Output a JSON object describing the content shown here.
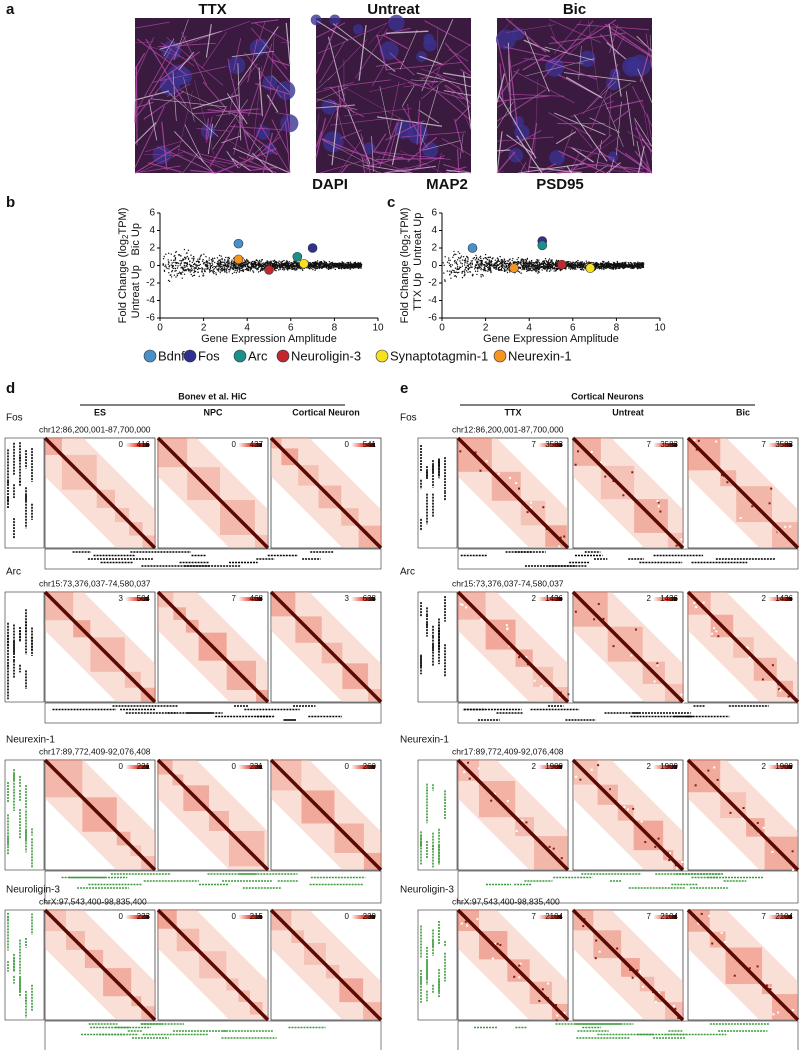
{
  "panel_a": {
    "label": "a",
    "columns": [
      "TTX",
      "Untreat",
      "Bic"
    ],
    "stains": [
      {
        "name": "DAPI",
        "color": "#2e3192"
      },
      {
        "name": "MAP2",
        "color": "#5cb85c"
      },
      {
        "name": "PSD95",
        "color": "#c548a8"
      }
    ]
  },
  "genes": [
    {
      "name": "Bdnf",
      "color": "#4a90c8"
    },
    {
      "name": "Fos",
      "color": "#2e3192"
    },
    {
      "name": "Arc",
      "color": "#1b8f8a"
    },
    {
      "name": "Neuroligin-3",
      "color": "#c1272d"
    },
    {
      "name": "Synaptotagmin-1",
      "color": "#f7e11e"
    },
    {
      "name": "Neurexin-1",
      "color": "#f7941d"
    }
  ],
  "scatter_panels": [
    {
      "label": "b",
      "type": "scatter",
      "y_label": {
        "text": "Fold Change (log",
        "sub": "2",
        "end": "TPM)"
      },
      "up_label": "Bic Up",
      "down_label": "Untreat Up",
      "x_label": "Gene Expression Amplitude",
      "xlim": [
        0,
        10
      ],
      "ylim": [
        -6,
        6
      ],
      "xticks": [
        0,
        2,
        4,
        6,
        8,
        10
      ],
      "yticks": [
        -6,
        -4,
        -2,
        0,
        2,
        4,
        6
      ],
      "points": [
        {
          "x": 3.6,
          "y": 2.5
        },
        {
          "x": 7.0,
          "y": 2.0
        },
        {
          "x": 6.3,
          "y": 1.0
        },
        {
          "x": 5.0,
          "y": -0.5
        },
        {
          "x": 6.6,
          "y": 0.2
        },
        {
          "x": 3.6,
          "y": 0.7
        }
      ]
    },
    {
      "label": "c",
      "type": "scatter",
      "y_label": {
        "text": "Fold Change (log",
        "sub": "2",
        "end": "TPM)"
      },
      "up_label": "Untreat Up",
      "down_label": "TTX Up",
      "x_label": "Gene Expression Amplitude",
      "xlim": [
        0,
        10
      ],
      "ylim": [
        -6,
        6
      ],
      "xticks": [
        0,
        2,
        4,
        6,
        8,
        10
      ],
      "yticks": [
        -6,
        -4,
        -2,
        0,
        2,
        4,
        6
      ],
      "points": [
        {
          "x": 1.4,
          "y": 2.0
        },
        {
          "x": 4.6,
          "y": 2.8
        },
        {
          "x": 4.6,
          "y": 2.3
        },
        {
          "x": 5.5,
          "y": 0.1
        },
        {
          "x": 6.8,
          "y": -0.3
        },
        {
          "x": 3.3,
          "y": -0.3
        }
      ]
    }
  ],
  "hic_panels": [
    {
      "label": "d",
      "header": "Bonev et al. HiC",
      "columns": [
        "ES",
        "NPC",
        "Cortical Neuron"
      ],
      "rows": [
        {
          "gene": "Fos",
          "region": "chr12:86,200,001-87,700,000",
          "scales": [
            [
              0,
              416
            ],
            [
              0,
              437
            ],
            [
              0,
              541
            ]
          ]
        },
        {
          "gene": "Arc",
          "region": "chr15:73,376,037-74,580,037",
          "scales": [
            [
              3,
              504
            ],
            [
              7,
              468
            ],
            [
              3,
              638
            ]
          ]
        },
        {
          "gene": "Neurexin-1",
          "region": "chr17:89,772,409-92,076,408",
          "scales": [
            [
              0,
              221
            ],
            [
              0,
              231
            ],
            [
              0,
              260
            ]
          ]
        },
        {
          "gene": "Neuroligin-3",
          "region": "chrX:97,543,400-98,835,400",
          "scales": [
            [
              0,
              223
            ],
            [
              0,
              215
            ],
            [
              0,
              239
            ]
          ]
        }
      ]
    },
    {
      "label": "e",
      "header": "Cortical Neurons",
      "columns": [
        "TTX",
        "Untreat",
        "Bic"
      ],
      "rows": [
        {
          "gene": "Fos",
          "region": "chr12:86,200,001-87,700,000",
          "scales": [
            [
              7,
              3583
            ],
            [
              7,
              3583
            ],
            [
              7,
              3583
            ]
          ]
        },
        {
          "gene": "Arc",
          "region": "chr15:73,376,037-74,580,037",
          "scales": [
            [
              2,
              1436
            ],
            [
              2,
              1436
            ],
            [
              2,
              1436
            ]
          ]
        },
        {
          "gene": "Neurexin-1",
          "region": "chr17:89,772,409-92,076,408",
          "scales": [
            [
              2,
              1909
            ],
            [
              2,
              1909
            ],
            [
              2,
              1909
            ]
          ]
        },
        {
          "gene": "Neuroligin-3",
          "region": "chrX:97,543,400-98,835,400",
          "scales": [
            [
              7,
              2104
            ],
            [
              7,
              2104
            ],
            [
              7,
              2104
            ]
          ]
        }
      ]
    }
  ]
}
